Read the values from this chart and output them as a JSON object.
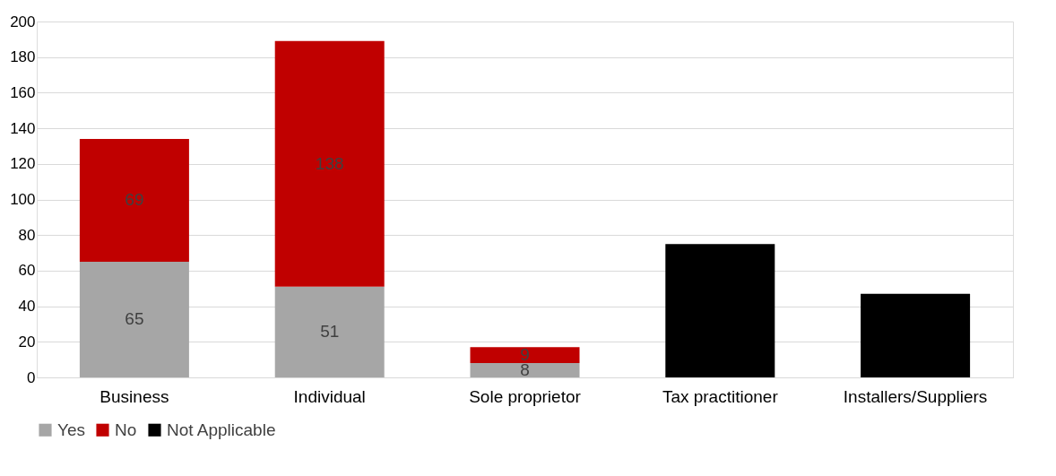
{
  "chart_data": {
    "type": "bar",
    "stacked": true,
    "categories": [
      "Business",
      "Individual",
      "Sole proprietor",
      "Tax practitioner",
      "Installers/Suppliers"
    ],
    "series": [
      {
        "name": "Yes",
        "color": "#a6a6a6",
        "values": [
          65,
          51,
          8,
          null,
          null
        ],
        "value_labels": [
          "65",
          "51",
          "8",
          null,
          null
        ]
      },
      {
        "name": "No",
        "color": "#c00000",
        "values": [
          69,
          138,
          9,
          null,
          null
        ],
        "value_labels": [
          "69",
          "138",
          "9",
          null,
          null
        ]
      },
      {
        "name": "Not Applicable",
        "color": "#000000",
        "values": [
          null,
          null,
          null,
          75,
          47
        ]
      }
    ],
    "ylim": [
      0,
      200
    ],
    "yticks": [
      0,
      20,
      40,
      60,
      80,
      100,
      120,
      140,
      160,
      180,
      200
    ],
    "grid": "y",
    "legend": "bottom"
  }
}
